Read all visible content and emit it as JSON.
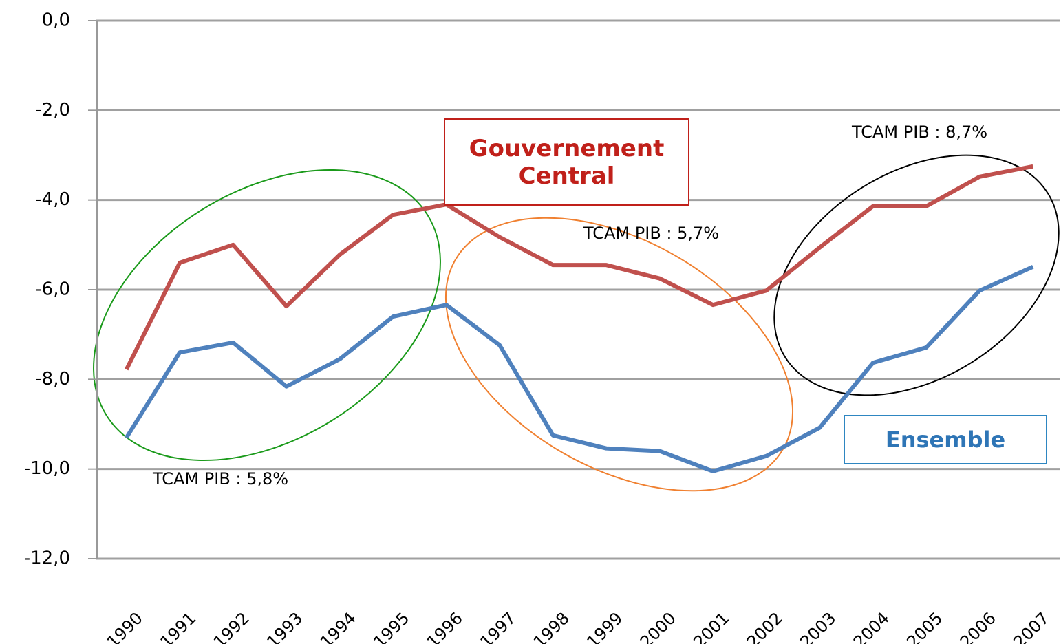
{
  "chart_data": {
    "type": "line",
    "categories": [
      "1990",
      "1991",
      "1992",
      "1993",
      "1994",
      "1995",
      "1996",
      "1997",
      "1998",
      "1999",
      "2000",
      "2001",
      "2002",
      "2003",
      "2004",
      "2005",
      "2006",
      "2007"
    ],
    "series": [
      {
        "name": "Gouvernement Central",
        "color": "#c0504d",
        "values": [
          -7.78,
          -5.4,
          -5.0,
          -6.37,
          -5.22,
          -4.33,
          -4.1,
          -4.83,
          -5.45,
          -5.45,
          -5.75,
          -6.34,
          -6.02,
          -5.06,
          -4.14,
          -4.14,
          -3.48,
          -3.25
        ]
      },
      {
        "name": "Ensemble",
        "color": "#4f81bd",
        "values": [
          -9.3,
          -7.4,
          -7.18,
          -8.16,
          -7.55,
          -6.6,
          -6.34,
          -7.24,
          -9.25,
          -9.54,
          -9.6,
          -10.05,
          -9.71,
          -9.08,
          -7.63,
          -7.29,
          -6.02,
          -5.49
        ]
      }
    ],
    "ylim": [
      -12,
      0
    ],
    "yticks": [
      {
        "value": 0,
        "label": "0,0"
      },
      {
        "value": -2,
        "label": "-2,0"
      },
      {
        "value": -4,
        "label": "-4,0"
      },
      {
        "value": -6,
        "label": "-6,0"
      },
      {
        "value": -8,
        "label": "-8,0"
      },
      {
        "value": -10,
        "label": "-10,0"
      },
      {
        "value": -12,
        "label": "-12,0"
      }
    ],
    "grid": true,
    "annotations": [
      "TCAM PIB : 5,8%",
      "TCAM PIB : 5,7%",
      "TCAM PIB : 8,7%"
    ]
  }
}
